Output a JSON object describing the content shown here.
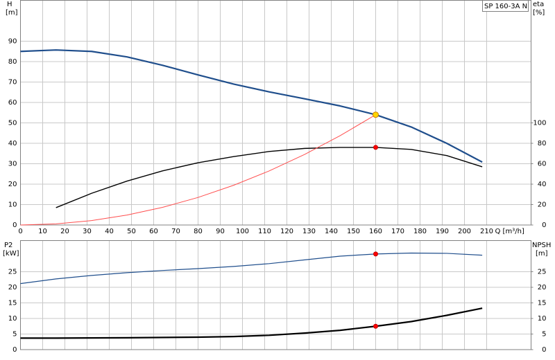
{
  "chart_data": [
    {
      "type": "line",
      "title": "SP 160-3A N",
      "ylabel": "H",
      "yunit": "[m]",
      "y2label": "eta",
      "y2unit": "[%]",
      "xlabel": "Q [m³/h]",
      "xlim": [
        0,
        230
      ],
      "xticks": [
        0,
        10,
        20,
        30,
        40,
        50,
        60,
        70,
        80,
        90,
        100,
        110,
        120,
        130,
        140,
        150,
        160,
        170,
        180,
        190,
        200,
        210
      ],
      "ylim": [
        0,
        110
      ],
      "yticks": [
        0,
        10,
        20,
        30,
        40,
        50,
        60,
        70,
        80,
        90
      ],
      "y2lim": [
        0,
        220
      ],
      "y2ticks": [
        0,
        20,
        40,
        60,
        80,
        100
      ],
      "grid": true,
      "series": [
        {
          "color": "#1f4e8c",
          "line_width": 2.2,
          "x": [
            0,
            16,
            32,
            48,
            64,
            80,
            96,
            112,
            128,
            144,
            160,
            176,
            192,
            208
          ],
          "values": [
            85,
            85.7,
            85,
            82.3,
            78.2,
            73.5,
            69,
            65.2,
            61.8,
            58.3,
            54,
            48,
            40,
            30.8
          ]
        },
        {
          "color": "#000000",
          "line_width": 1.4,
          "axis": "y2",
          "x": [
            16,
            32,
            48,
            64,
            80,
            96,
            112,
            128,
            144,
            160,
            176,
            192,
            208
          ],
          "values": [
            17,
            31,
            43,
            53,
            61,
            67,
            72,
            75,
            76,
            76,
            74,
            68,
            57
          ]
        },
        {
          "color": "#ff4d4d",
          "line_width": 1,
          "x": [
            0,
            16,
            32,
            48,
            64,
            80,
            96,
            112,
            128,
            144,
            160
          ],
          "values": [
            0,
            0.54,
            2.16,
            4.86,
            8.64,
            13.5,
            19.44,
            26.46,
            34.56,
            43.74,
            54
          ]
        }
      ],
      "points": [
        {
          "color": "#ffd700",
          "x": 160,
          "y": 54
        },
        {
          "color": "#ff0000",
          "axis": "y2",
          "x": 160,
          "y": 76
        }
      ]
    },
    {
      "type": "line",
      "ylabel": "P2",
      "yunit": "[kW]",
      "y2label": "NPSH",
      "y2unit": "[m]",
      "xlim": [
        0,
        230
      ],
      "xticks": [
        0,
        10,
        20,
        30,
        40,
        50,
        60,
        70,
        80,
        90,
        100,
        110,
        120,
        130,
        140,
        150,
        160,
        170,
        180,
        190,
        200,
        210
      ],
      "ylim": [
        0,
        35
      ],
      "yticks": [
        0,
        5,
        10,
        15,
        20,
        25
      ],
      "y2lim": [
        0,
        35
      ],
      "y2ticks": [
        0,
        5,
        10,
        15,
        20,
        25
      ],
      "grid": true,
      "series": [
        {
          "color": "#1f4e8c",
          "line_width": 1.2,
          "x": [
            0,
            16,
            32,
            48,
            64,
            80,
            96,
            112,
            128,
            144,
            160,
            176,
            192,
            208
          ],
          "values": [
            21.2,
            22.7,
            23.8,
            24.7,
            25.4,
            26,
            26.7,
            27.6,
            28.8,
            30,
            30.7,
            31,
            30.9,
            30.3
          ]
        },
        {
          "color": "#000000",
          "line_width": 2.2,
          "axis": "y2",
          "x": [
            0,
            16,
            48,
            80,
            96,
            112,
            128,
            144,
            160,
            176,
            192,
            208
          ],
          "values": [
            3.7,
            3.7,
            3.8,
            4,
            4.2,
            4.6,
            5.3,
            6.2,
            7.5,
            9,
            11,
            13.3
          ]
        }
      ],
      "points": [
        {
          "color": "#ff0000",
          "x": 160,
          "y": 30.7
        },
        {
          "color": "#ff0000",
          "axis": "y2",
          "x": 160,
          "y": 7.5
        }
      ]
    }
  ]
}
